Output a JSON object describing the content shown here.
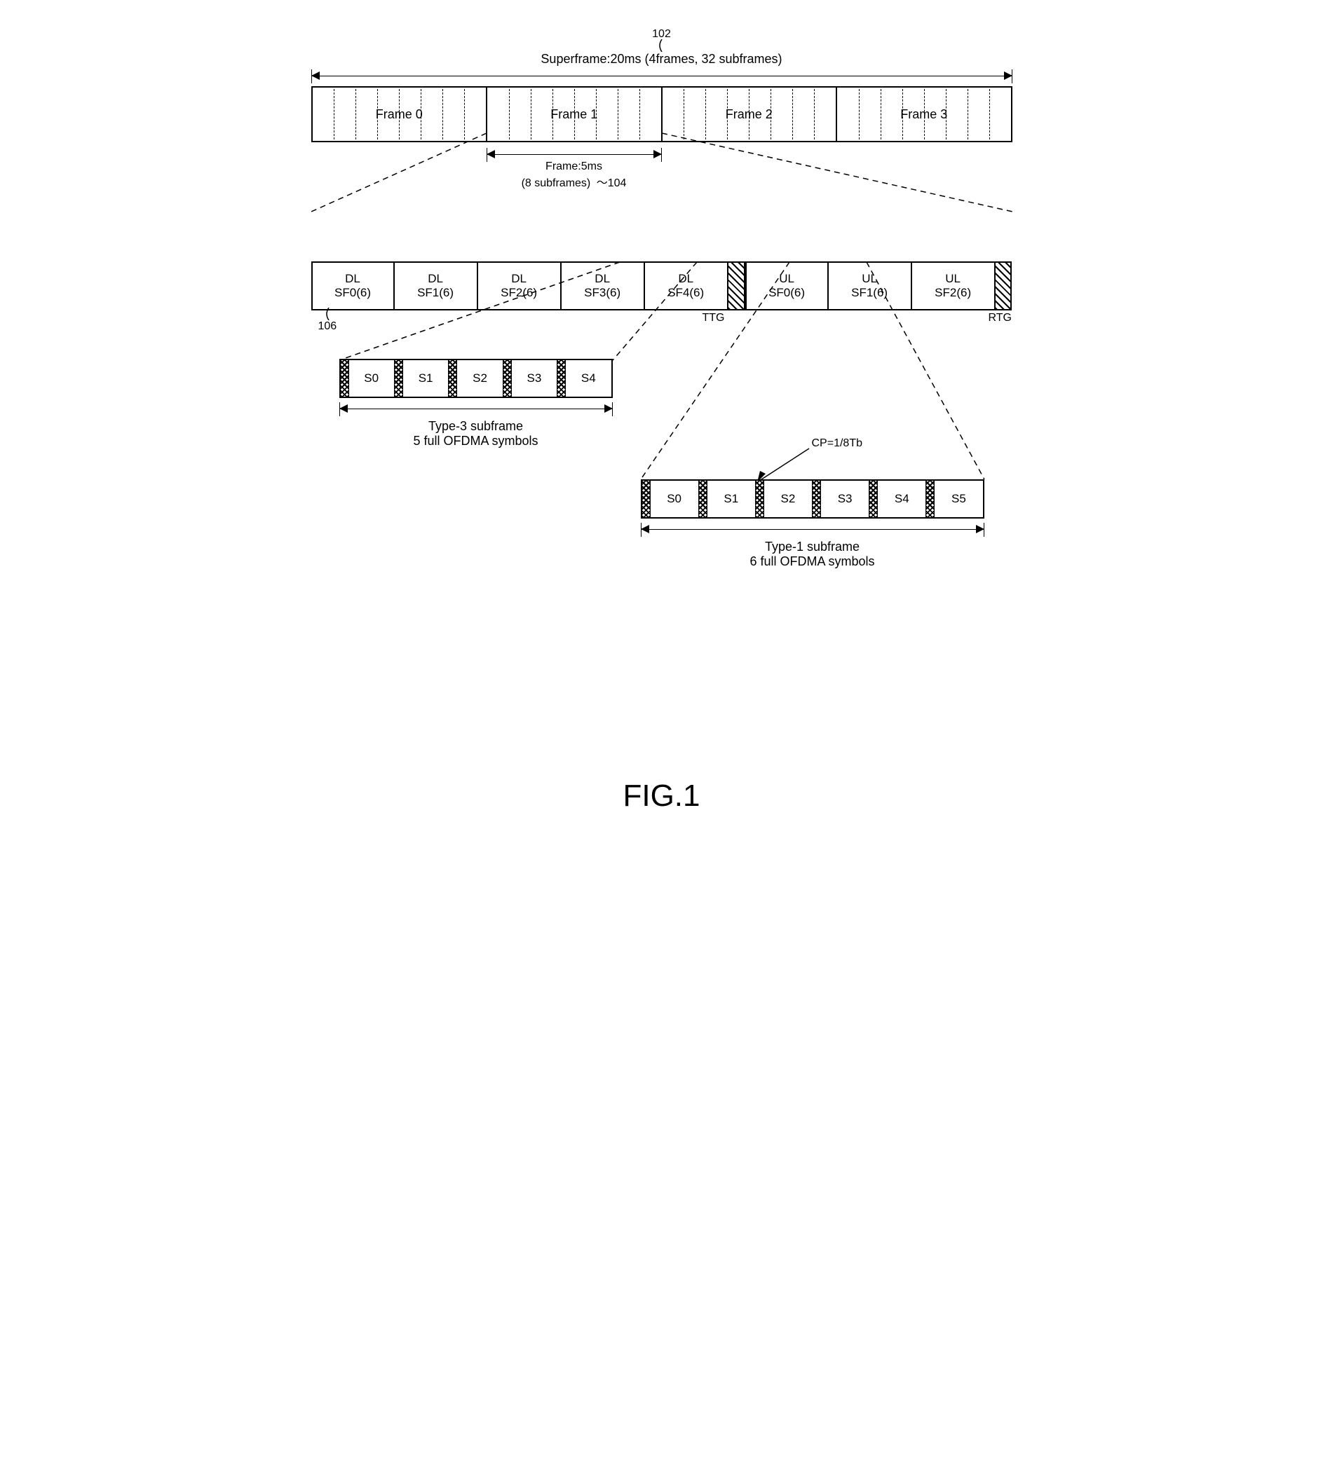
{
  "refs": {
    "superframe": "102",
    "frame": "104",
    "subframe": "106"
  },
  "superframe": {
    "title": "Superframe:20ms (4frames, 32 subframes)",
    "frames": [
      "Frame 0",
      "Frame 1",
      "Frame 2",
      "Frame 3"
    ],
    "sub_per_frame": 8
  },
  "frame": {
    "line1": "Frame:5ms",
    "line2": "(8 subframes)"
  },
  "subframes": {
    "dl": [
      "DL\nSF0(6)",
      "DL\nSF1(6)",
      "DL\nSF2(6)",
      "DL\nSF3(6)",
      "DL\nSF4(6)"
    ],
    "ul": [
      "UL\nSF0(6)",
      "UL\nSF1(6)",
      "UL\nSF2(6)"
    ],
    "ttg": "TTG",
    "rtg": "RTG",
    "dl_width": 110,
    "ul_width": 110,
    "gap_width": 22
  },
  "type3": {
    "symbols": [
      "S0",
      "S1",
      "S2",
      "S3",
      "S4"
    ],
    "title_l1": "Type-3 subframe",
    "title_l2": "5 full OFDMA symbols"
  },
  "type1": {
    "symbols": [
      "S0",
      "S1",
      "S2",
      "S3",
      "S4",
      "S5"
    ],
    "title_l1": "Type-1 subframe",
    "title_l2": "6 full OFDMA symbols",
    "cp_label": "CP=1/8Tb"
  },
  "figure": "FIG.1",
  "colors": {
    "line": "#000000",
    "bg": "#ffffff"
  },
  "fontsize": {
    "label": 18,
    "small": 16,
    "fig": 44
  }
}
